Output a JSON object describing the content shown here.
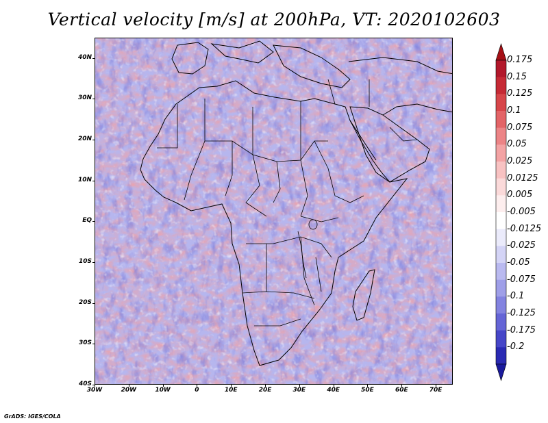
{
  "title": "Vertical velocity [m/s] at 200hPa, VT: 2020102603",
  "credit": "GrADS: IGES/COLA",
  "map": {
    "lon_range": [
      -30,
      75
    ],
    "lat_range": [
      -40,
      45
    ],
    "lat_ticks": [
      {
        "value": 40,
        "label": "40N"
      },
      {
        "value": 30,
        "label": "30N"
      },
      {
        "value": 20,
        "label": "20N"
      },
      {
        "value": 10,
        "label": "10N"
      },
      {
        "value": 0,
        "label": "EQ"
      },
      {
        "value": -10,
        "label": "10S"
      },
      {
        "value": -20,
        "label": "20S"
      },
      {
        "value": -30,
        "label": "30S"
      },
      {
        "value": -40,
        "label": "40S"
      }
    ],
    "lon_ticks": [
      {
        "value": -30,
        "label": "30W"
      },
      {
        "value": -20,
        "label": "20W"
      },
      {
        "value": -10,
        "label": "10W"
      },
      {
        "value": 0,
        "label": "0"
      },
      {
        "value": 10,
        "label": "10E"
      },
      {
        "value": 20,
        "label": "20E"
      },
      {
        "value": 30,
        "label": "30E"
      },
      {
        "value": 40,
        "label": "40E"
      },
      {
        "value": 50,
        "label": "50E"
      },
      {
        "value": 60,
        "label": "60E"
      },
      {
        "value": 70,
        "label": "70E"
      }
    ]
  },
  "colorbar": {
    "levels": [
      {
        "label": "0.175",
        "color": "#b2182b"
      },
      {
        "label": "0.15",
        "color": "#c62a35"
      },
      {
        "label": "0.125",
        "color": "#d7464a"
      },
      {
        "label": "0.1",
        "color": "#e36467"
      },
      {
        "label": "0.075",
        "color": "#ec8486"
      },
      {
        "label": "0.05",
        "color": "#f3a3a4"
      },
      {
        "label": "0.025",
        "color": "#f8c2c2"
      },
      {
        "label": "0.0125",
        "color": "#fbdada"
      },
      {
        "label": "0.005",
        "color": "#fdeeee"
      },
      {
        "label": "-0.005",
        "color": "#ffffff"
      },
      {
        "label": "-0.0125",
        "color": "#ebebfb"
      },
      {
        "label": "-0.025",
        "color": "#d4d4f6"
      },
      {
        "label": "-0.05",
        "color": "#babaf0"
      },
      {
        "label": "-0.075",
        "color": "#9f9fe8"
      },
      {
        "label": "-0.1",
        "color": "#8383e0"
      },
      {
        "label": "-0.125",
        "color": "#6565d6"
      },
      {
        "label": "-0.175",
        "color": "#4646c8"
      },
      {
        "label": "-0.2",
        "color": "#2a2ab3"
      }
    ],
    "top_arrow_color": "#a50f15",
    "bottom_arrow_color": "#1a1a9c"
  }
}
